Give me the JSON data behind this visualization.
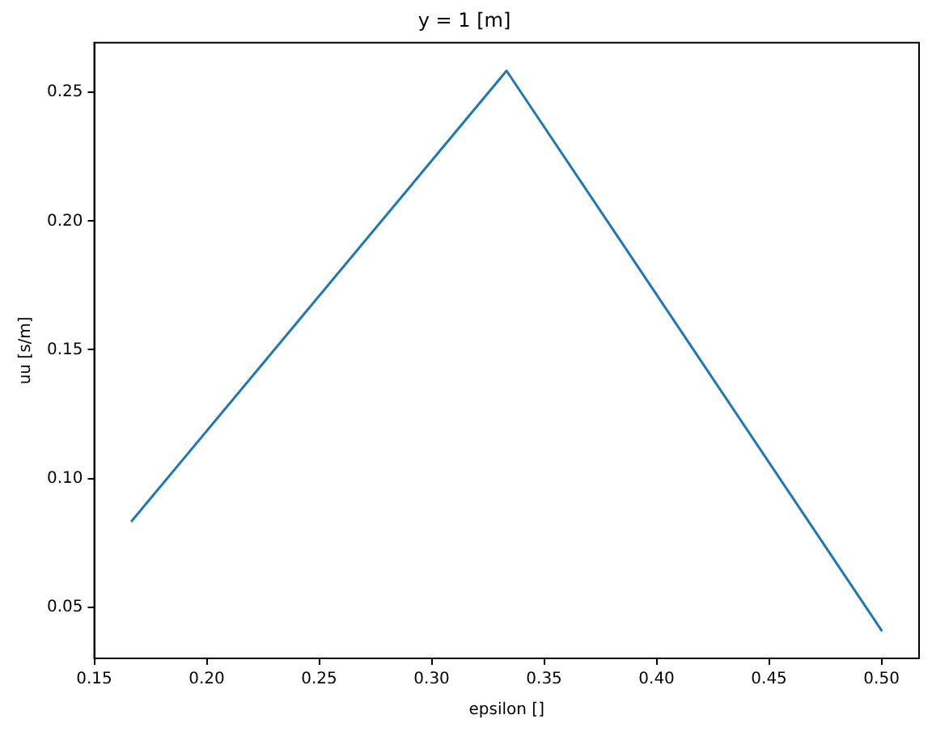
{
  "chart_data": {
    "type": "line",
    "title": "y = 1 [m]",
    "xlabel": "epsilon []",
    "ylabel": "uu [s/m]",
    "x": [
      0.1667,
      0.3333,
      0.5
    ],
    "series": [
      {
        "color": "#1f77b4",
        "values": [
          0.0835,
          0.2584,
          0.041
        ]
      }
    ],
    "xlim": [
      0.15,
      0.5167
    ],
    "xticks": [
      {
        "value": 0.15,
        "label": "0.15"
      },
      {
        "value": 0.2,
        "label": "0.20"
      },
      {
        "value": 0.25,
        "label": "0.25"
      },
      {
        "value": 0.3,
        "label": "0.30"
      },
      {
        "value": 0.35,
        "label": "0.35"
      },
      {
        "value": 0.4,
        "label": "0.40"
      },
      {
        "value": 0.45,
        "label": "0.45"
      },
      {
        "value": 0.5,
        "label": "0.50"
      }
    ],
    "ylim": [
      0.0301,
      0.2693
    ],
    "yticks": [
      {
        "value": 0.05,
        "label": "0.05"
      },
      {
        "value": 0.1,
        "label": "0.10"
      },
      {
        "value": 0.15,
        "label": "0.15"
      },
      {
        "value": 0.2,
        "label": "0.20"
      },
      {
        "value": 0.25,
        "label": "0.25"
      }
    ],
    "grid": false,
    "legend": false,
    "marker": "none",
    "line_style": "solid"
  }
}
